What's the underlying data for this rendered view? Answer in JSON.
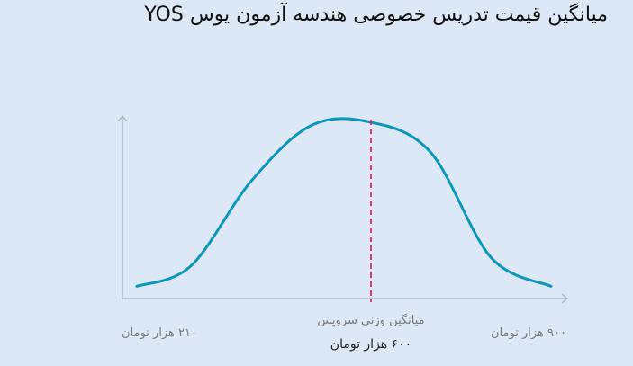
{
  "title": "میانگین قیمت تدریس خصوصی هندسه آزمون یوس YOS",
  "colors": {
    "background": "#dce8f6",
    "axis": "#a3b3c4",
    "curve": "#0a97b8",
    "mean_line": "#e0245e",
    "label": "#7a7a7a",
    "mean_value": "#222222"
  },
  "chart_data": {
    "type": "line",
    "title": "میانگین قیمت تدریس خصوصی هندسه آزمون یوس YOS",
    "xlabel": "",
    "ylabel": "",
    "x_range": [
      210,
      900
    ],
    "x_unit": "هزار تومان",
    "min_label": "۲۱۰ هزار تومان",
    "max_label": "۹۰۰ هزار تومان",
    "mean_caption": "میانگین وزنی سرویس",
    "mean_label": "۶۰۰ هزار تومان",
    "mean_value": 600,
    "grid": false,
    "legend": "none",
    "series": [
      {
        "x": [
          210,
          300,
          400,
          500,
          600,
          700,
          800,
          900
        ],
        "y": [
          0.03,
          0.15,
          0.65,
          0.98,
          1.0,
          0.82,
          0.2,
          0.03
        ]
      }
    ]
  }
}
